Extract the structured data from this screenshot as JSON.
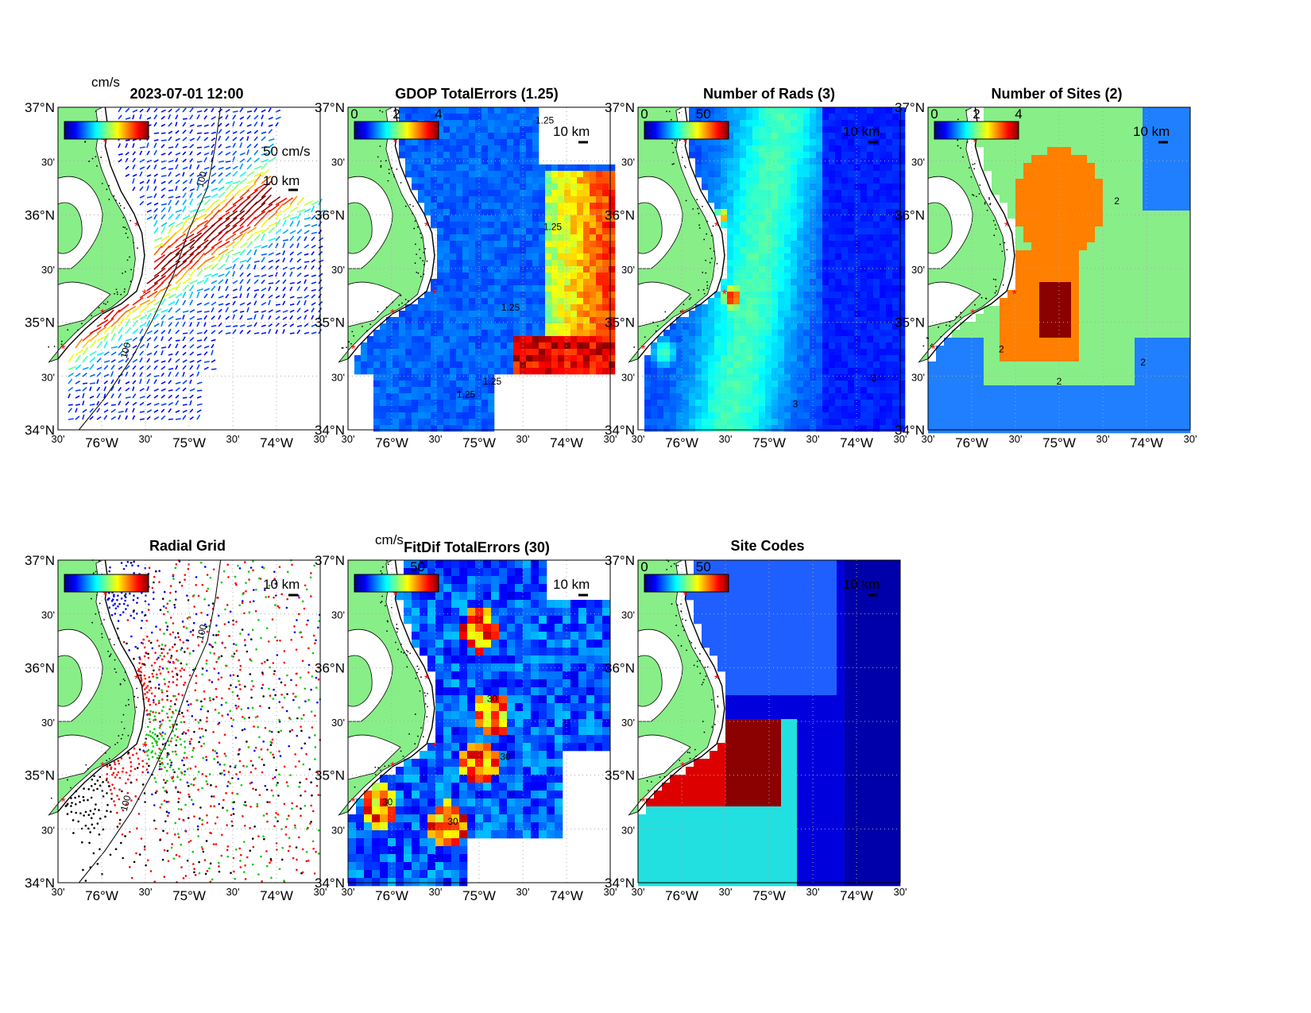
{
  "figure": {
    "colors": {
      "land": "#88ee88",
      "water_dark": "#0000cc",
      "coast_line": "#000000",
      "site_marker": "#ff0000",
      "grid_line": "#aaaaaa"
    },
    "panels": [
      {
        "id": "currents",
        "title": "2023-07-01 12:00",
        "colorbar_unit": "cm/s",
        "colorbar_ticks": [],
        "vector_scale_label": "50 cm/s",
        "scale_label": "10 km",
        "contour_labels": [
          "100",
          "100"
        ],
        "icon": "current-vector-arrows"
      },
      {
        "id": "gdop",
        "title": "GDOP TotalErrors (1.25)",
        "colorbar_unit": "",
        "colorbar_ticks": [
          "0",
          "2",
          "4"
        ],
        "scale_label": "10 km",
        "contour_labels": [
          "1.25",
          "1.25",
          "1.25",
          "1.25",
          "1.25"
        ]
      },
      {
        "id": "nrads",
        "title": "Number of Rads (3)",
        "colorbar_unit": "",
        "colorbar_ticks": [
          "0",
          "50"
        ],
        "scale_label": "10 km",
        "contour_labels": [
          "3",
          "3"
        ]
      },
      {
        "id": "nsites",
        "title": "Number of Sites (2)",
        "colorbar_unit": "",
        "colorbar_ticks": [
          "0",
          "2",
          "4"
        ],
        "scale_label": "10 km",
        "contour_labels": [
          "2",
          "2",
          "2",
          "2"
        ]
      },
      {
        "id": "radgrid",
        "title": "Radial Grid",
        "colorbar_unit": "",
        "colorbar_ticks": [],
        "scale_label": "10 km",
        "contour_labels": [
          "100",
          "100"
        ],
        "site_colors": [
          "#0000ff",
          "#ff0000",
          "#ff0000",
          "#00cc00",
          "#000000"
        ]
      },
      {
        "id": "fitdif",
        "title": "FitDif TotalErrors (30)",
        "colorbar_unit": "cm/s",
        "colorbar_ticks": [
          "50"
        ],
        "scale_label": "10 km",
        "contour_labels": [
          "30",
          "30",
          "30",
          "30"
        ]
      },
      {
        "id": "sitecodes",
        "title": "Site Codes",
        "colorbar_unit": "",
        "colorbar_ticks": [
          "0",
          "50"
        ],
        "scale_label": "10 km",
        "contour_labels": []
      }
    ],
    "axes": {
      "lat_labels": [
        "37°N",
        "30'",
        "36°N",
        "30'",
        "35°N",
        "30'",
        "34°N"
      ],
      "lon_labels": [
        "30'",
        "76°W",
        "30'",
        "75°W",
        "30'",
        "74°W",
        "30'"
      ],
      "lat_major": [
        true,
        false,
        true,
        false,
        true,
        false,
        true
      ],
      "lon_major": [
        false,
        true,
        false,
        true,
        false,
        true,
        false
      ]
    }
  }
}
